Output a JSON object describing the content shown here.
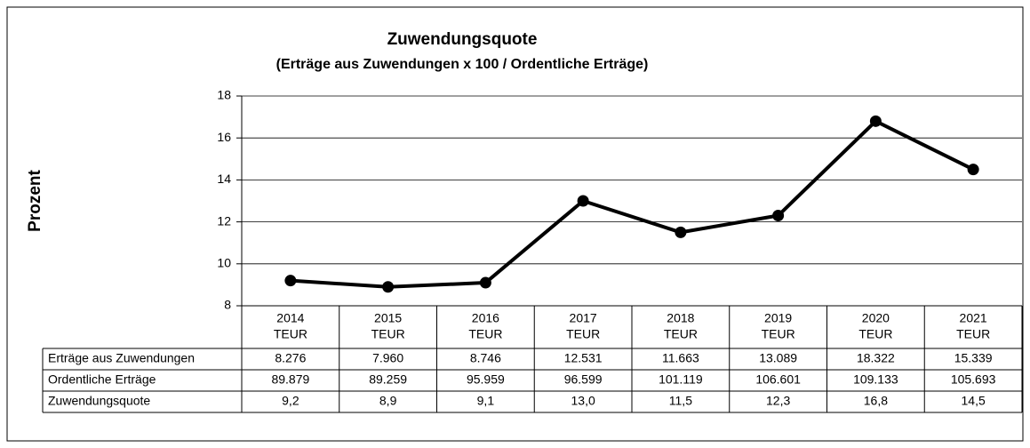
{
  "chart_data": {
    "type": "line",
    "title": "Zuwendungsquote",
    "subtitle": "(Erträge aus Zuwendungen x 100 / Ordentliche Erträge)",
    "y_label": "Prozent",
    "categories": [
      "2014",
      "2015",
      "2016",
      "2017",
      "2018",
      "2019",
      "2020",
      "2021"
    ],
    "category_unit": "TEUR",
    "series": [
      {
        "name": "Zuwendungsquote",
        "color": "#000000",
        "values": [
          9.2,
          8.9,
          9.1,
          13.0,
          11.5,
          12.3,
          16.8,
          14.5
        ],
        "value_labels": [
          "9,2",
          "8,9",
          "9,1",
          "13,0",
          "11,5",
          "12,3",
          "16,8",
          "14,5"
        ]
      }
    ],
    "ylim": [
      8,
      18
    ],
    "yticks": [
      8,
      10,
      12,
      14,
      16,
      18
    ],
    "grid": true,
    "table_rows": [
      {
        "label": "Erträge aus Zuwendungen",
        "values": [
          "8.276",
          "7.960",
          "8.746",
          "12.531",
          "11.663",
          "13.089",
          "18.322",
          "15.339"
        ]
      },
      {
        "label": "Ordentliche Erträge",
        "values": [
          "89.879",
          "89.259",
          "95.959",
          "96.599",
          "101.119",
          "106.601",
          "109.133",
          "105.693"
        ]
      }
    ]
  }
}
